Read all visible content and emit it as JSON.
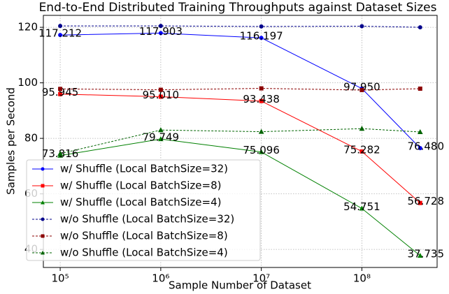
{
  "chart_data": {
    "type": "line",
    "title": "End-to-End Distributed Training Throughputs against Dataset Sizes",
    "xlabel": "Sample Number of Dataset",
    "ylabel": "Samples per Second",
    "x": [
      100000,
      1000000,
      10000000,
      100000000,
      380000000
    ],
    "xscale": "log",
    "xlim": [
      68000,
      560000000
    ],
    "xticks": [
      {
        "value": 100000,
        "label": "10⁵"
      },
      {
        "value": 1000000,
        "label": "10⁶"
      },
      {
        "value": 10000000,
        "label": "10⁷"
      },
      {
        "value": 100000000,
        "label": "10⁸"
      }
    ],
    "ylim": [
      33.5,
      124.3
    ],
    "yticks": [
      40,
      60,
      80,
      100,
      120
    ],
    "grid": true,
    "legend": "lower left",
    "series": [
      {
        "name": "w/ Shuffle (Local BatchSize=32)",
        "color": "#0000ff",
        "marker": "circle",
        "linestyle": "solid",
        "values": [
          117.212,
          117.903,
          116.197,
          97.95,
          76.48
        ],
        "value_labels": [
          "117.212",
          "117.903",
          "116.197",
          "97.950",
          "76.480"
        ]
      },
      {
        "name": "w/ Shuffle (Local BatchSize=8)",
        "color": "#ff0000",
        "marker": "square",
        "linestyle": "solid",
        "values": [
          95.945,
          95.01,
          93.438,
          75.282,
          56.728
        ],
        "value_labels": [
          "95.945",
          "95.010",
          "93.438",
          "75.282",
          "56.728"
        ]
      },
      {
        "name": "w/ Shuffle (Local BatchSize=4)",
        "color": "#008000",
        "marker": "triangle",
        "linestyle": "solid",
        "values": [
          73.816,
          79.749,
          75.096,
          54.751,
          37.735
        ],
        "value_labels": [
          "73.816",
          "79.749",
          "75.096",
          "54.751",
          "37.735"
        ]
      },
      {
        "name": "w/o Shuffle (Local BatchSize=32)",
        "color": "#00008b",
        "marker": "circle",
        "linestyle": "dashed",
        "values": [
          120.5,
          120.5,
          120.3,
          120.4,
          120.0
        ]
      },
      {
        "name": "w/o Shuffle (Local BatchSize=8)",
        "color": "#8b0000",
        "marker": "square",
        "linestyle": "dashed",
        "values": [
          97.8,
          97.5,
          98.0,
          97.4,
          97.9
        ]
      },
      {
        "name": "w/o Shuffle (Local BatchSize=4)",
        "color": "#006400",
        "marker": "triangle",
        "linestyle": "dashed",
        "values": [
          74.5,
          83.0,
          82.4,
          83.5,
          82.3
        ]
      }
    ]
  }
}
